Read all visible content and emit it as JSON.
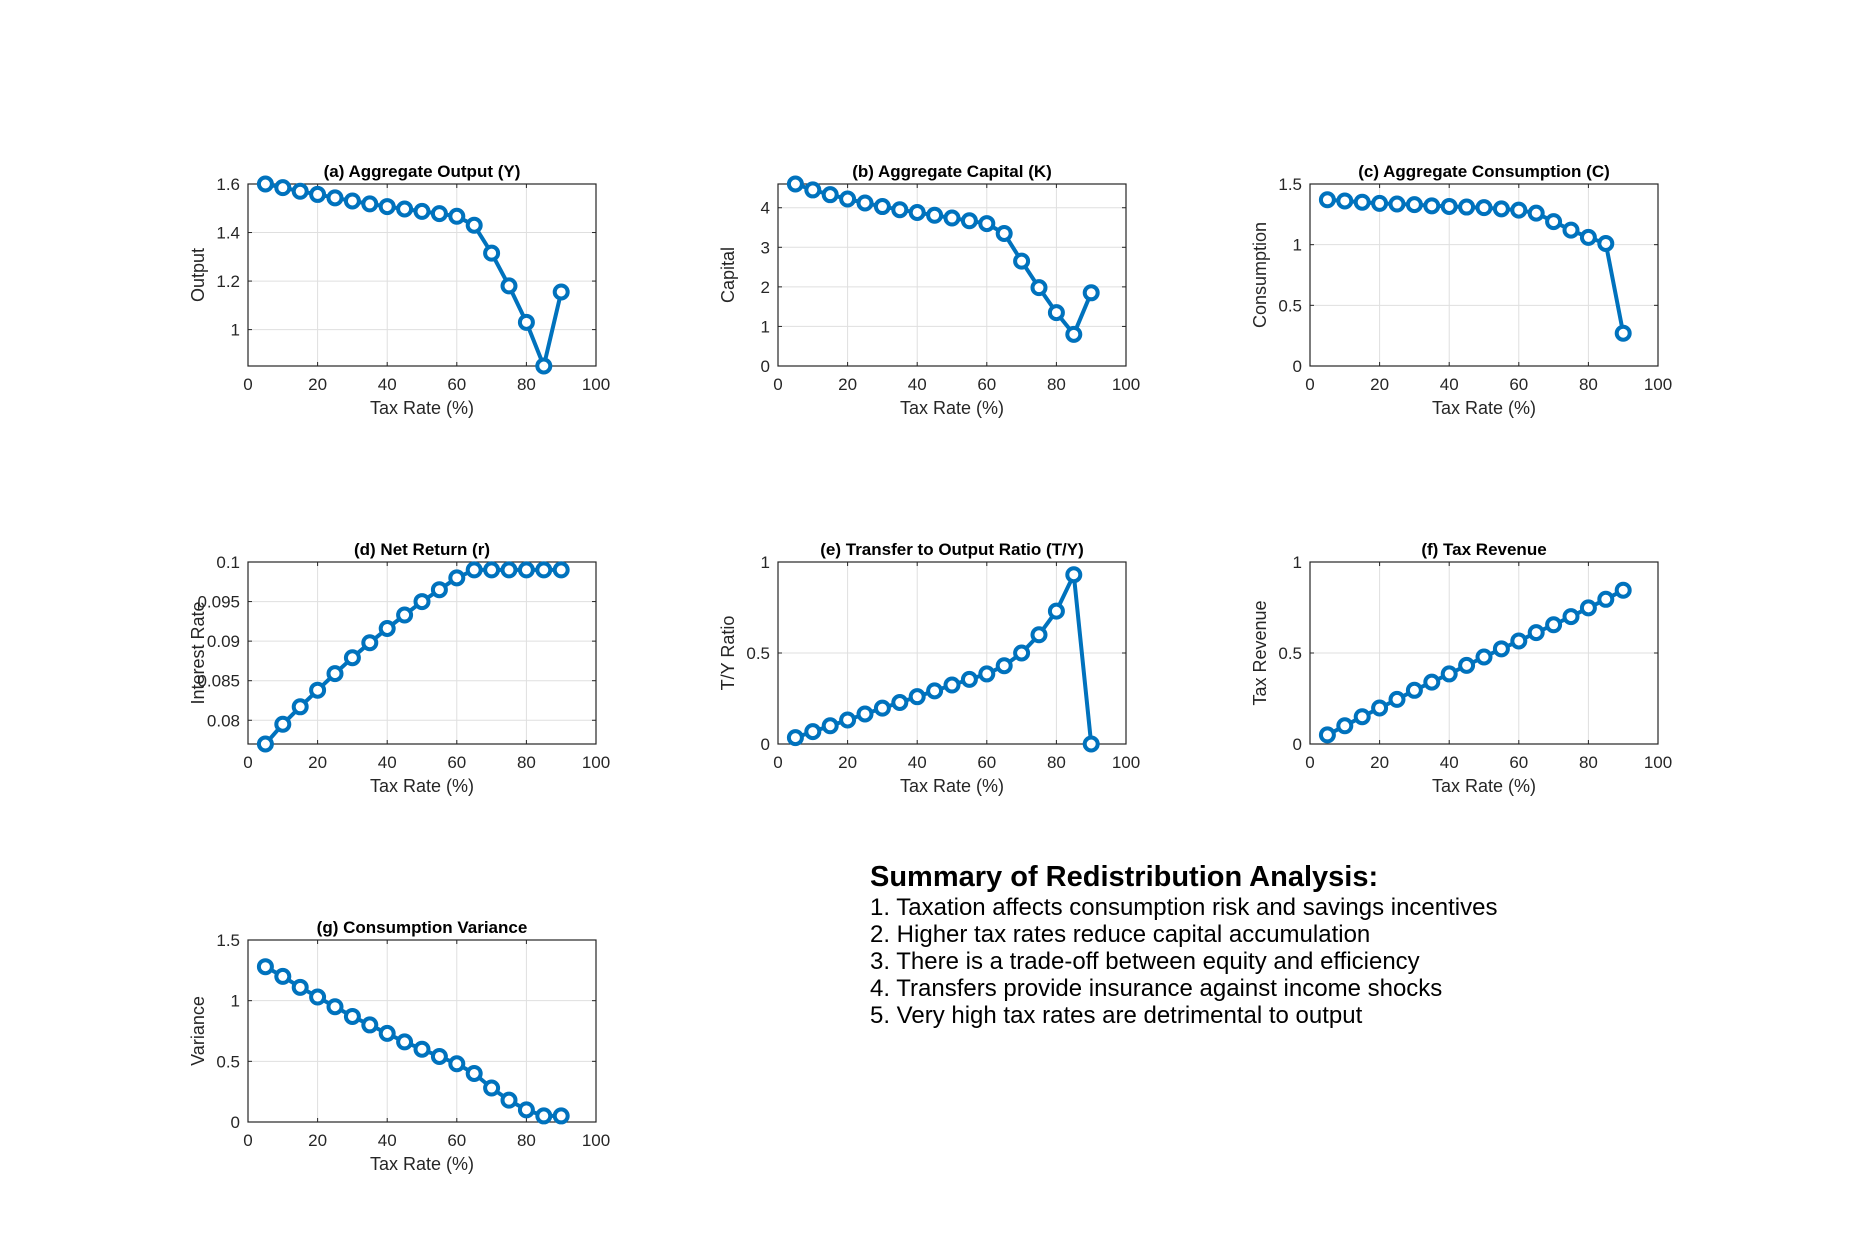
{
  "colors": {
    "series": "#0072BD"
  },
  "chart_data": [
    {
      "type": "line",
      "title": "(a) Aggregate Output (Y)",
      "xlabel": "Tax Rate (%)",
      "ylabel": "Output",
      "x": [
        5,
        10,
        15,
        20,
        25,
        30,
        35,
        40,
        45,
        50,
        55,
        60,
        65,
        70,
        75,
        80,
        85,
        90
      ],
      "values": [
        1.6,
        1.585,
        1.57,
        1.557,
        1.543,
        1.53,
        1.518,
        1.507,
        1.497,
        1.487,
        1.478,
        1.467,
        1.43,
        1.315,
        1.18,
        1.03,
        0.85,
        1.155
      ],
      "xlim": [
        0,
        100
      ],
      "ylim": [
        0.85,
        1.6
      ],
      "xticks": [
        0,
        20,
        40,
        60,
        80,
        100
      ],
      "yticks": [
        1,
        1.2,
        1.4,
        1.6
      ],
      "yticklabels": [
        "1",
        "1.2",
        "1.4",
        "1.6"
      ],
      "grid": true
    },
    {
      "type": "line",
      "title": "(b) Aggregate Capital (K)",
      "xlabel": "Tax Rate (%)",
      "ylabel": "Capital",
      "x": [
        5,
        10,
        15,
        20,
        25,
        30,
        35,
        40,
        45,
        50,
        55,
        60,
        65,
        70,
        75,
        80,
        85,
        90
      ],
      "values": [
        4.6,
        4.45,
        4.33,
        4.22,
        4.12,
        4.03,
        3.95,
        3.88,
        3.81,
        3.74,
        3.67,
        3.6,
        3.35,
        2.65,
        1.98,
        1.35,
        0.8,
        1.85
      ],
      "xlim": [
        0,
        100
      ],
      "ylim": [
        0,
        4.6
      ],
      "xticks": [
        0,
        20,
        40,
        60,
        80,
        100
      ],
      "yticks": [
        0,
        1,
        2,
        3,
        4
      ],
      "yticklabels": [
        "0",
        "1",
        "2",
        "3",
        "4"
      ],
      "grid": true
    },
    {
      "type": "line",
      "title": "(c) Aggregate Consumption (C)",
      "xlabel": "Tax Rate (%)",
      "ylabel": "Consumption",
      "x": [
        5,
        10,
        15,
        20,
        25,
        30,
        35,
        40,
        45,
        50,
        55,
        60,
        65,
        70,
        75,
        80,
        85,
        90
      ],
      "values": [
        1.37,
        1.36,
        1.35,
        1.34,
        1.335,
        1.33,
        1.32,
        1.315,
        1.31,
        1.305,
        1.295,
        1.285,
        1.26,
        1.19,
        1.12,
        1.06,
        1.01,
        0.27
      ],
      "xlim": [
        0,
        100
      ],
      "ylim": [
        0,
        1.5
      ],
      "xticks": [
        0,
        20,
        40,
        60,
        80,
        100
      ],
      "yticks": [
        0,
        0.5,
        1,
        1.5
      ],
      "yticklabels": [
        "0",
        "0.5",
        "1",
        "1.5"
      ],
      "grid": true
    },
    {
      "type": "line",
      "title": "(d) Net Return (r)",
      "xlabel": "Tax Rate (%)",
      "ylabel": "Interest Rate",
      "x": [
        5,
        10,
        15,
        20,
        25,
        30,
        35,
        40,
        45,
        50,
        55,
        60,
        65,
        70,
        75,
        80,
        85,
        90
      ],
      "values": [
        0.077,
        0.0795,
        0.0817,
        0.0838,
        0.0859,
        0.0879,
        0.0898,
        0.0916,
        0.0933,
        0.095,
        0.0965,
        0.098,
        0.099,
        0.099,
        0.099,
        0.099,
        0.099,
        0.099
      ],
      "xlim": [
        0,
        100
      ],
      "ylim": [
        0.077,
        0.1
      ],
      "xticks": [
        0,
        20,
        40,
        60,
        80,
        100
      ],
      "yticks": [
        0.08,
        0.085,
        0.09,
        0.095,
        0.1
      ],
      "yticklabels": [
        "0.08",
        "0.085",
        "0.09",
        "0.095",
        "0.1"
      ],
      "grid": true
    },
    {
      "type": "line",
      "title": "(e) Transfer to Output Ratio (T/Y)",
      "xlabel": "Tax Rate (%)",
      "ylabel": "T/Y Ratio",
      "x": [
        5,
        10,
        15,
        20,
        25,
        30,
        35,
        40,
        45,
        50,
        55,
        60,
        65,
        70,
        75,
        80,
        85,
        90
      ],
      "values": [
        0.035,
        0.068,
        0.1,
        0.132,
        0.165,
        0.197,
        0.228,
        0.26,
        0.292,
        0.324,
        0.355,
        0.385,
        0.43,
        0.5,
        0.6,
        0.73,
        0.93,
        0.0
      ],
      "xlim": [
        0,
        100
      ],
      "ylim": [
        0,
        1
      ],
      "xticks": [
        0,
        20,
        40,
        60,
        80,
        100
      ],
      "yticks": [
        0,
        0.5,
        1
      ],
      "yticklabels": [
        "0",
        "0.5",
        "1"
      ],
      "grid": true
    },
    {
      "type": "line",
      "title": "(f) Tax Revenue",
      "xlabel": "Tax Rate (%)",
      "ylabel": "Tax Revenue",
      "x": [
        5,
        10,
        15,
        20,
        25,
        30,
        35,
        40,
        45,
        50,
        55,
        60,
        65,
        70,
        75,
        80,
        85,
        90
      ],
      "values": [
        0.05,
        0.1,
        0.15,
        0.198,
        0.245,
        0.295,
        0.34,
        0.385,
        0.432,
        0.478,
        0.523,
        0.566,
        0.612,
        0.655,
        0.7,
        0.748,
        0.795,
        0.845
      ],
      "xlim": [
        0,
        100
      ],
      "ylim": [
        0,
        1
      ],
      "xticks": [
        0,
        20,
        40,
        60,
        80,
        100
      ],
      "yticks": [
        0,
        0.5,
        1
      ],
      "yticklabels": [
        "0",
        "0.5",
        "1"
      ],
      "grid": true
    },
    {
      "type": "line",
      "title": "(g) Consumption Variance",
      "xlabel": "Tax Rate (%)",
      "ylabel": "Variance",
      "x": [
        5,
        10,
        15,
        20,
        25,
        30,
        35,
        40,
        45,
        50,
        55,
        60,
        65,
        70,
        75,
        80,
        85,
        90
      ],
      "values": [
        1.28,
        1.2,
        1.11,
        1.03,
        0.95,
        0.87,
        0.8,
        0.73,
        0.66,
        0.6,
        0.54,
        0.48,
        0.4,
        0.28,
        0.18,
        0.1,
        0.05,
        0.05
      ],
      "xlim": [
        0,
        100
      ],
      "ylim": [
        0,
        1.5
      ],
      "xticks": [
        0,
        20,
        40,
        60,
        80,
        100
      ],
      "yticks": [
        0,
        0.5,
        1,
        1.5
      ],
      "yticklabels": [
        "0",
        "0.5",
        "1",
        "1.5"
      ],
      "grid": true
    }
  ],
  "summary": {
    "title": "Summary of Redistribution Analysis:",
    "items": [
      "1. Taxation affects consumption risk and savings incentives",
      "2. Higher tax rates reduce capital accumulation",
      "3. There is a trade-off between equity and efficiency",
      "4. Transfers provide insurance against income shocks",
      "5. Very high tax rates are detrimental to output"
    ]
  }
}
